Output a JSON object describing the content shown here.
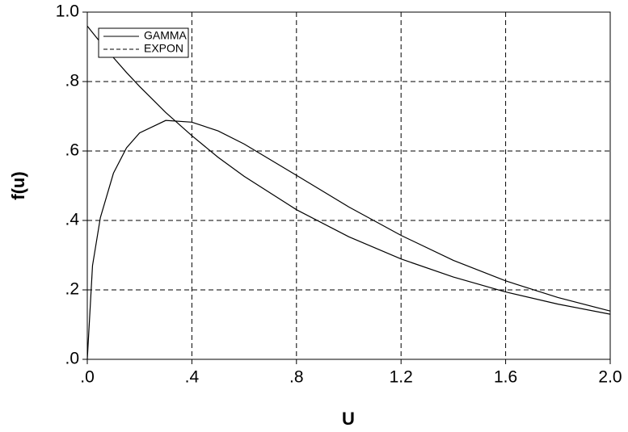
{
  "chart_data": {
    "type": "line",
    "x_label": "U",
    "y_label": "f(u)",
    "x": [
      0,
      0.02,
      0.05,
      0.1,
      0.15,
      0.2,
      0.3,
      0.4,
      0.5,
      0.6,
      0.8,
      1.0,
      1.2,
      1.4,
      1.6,
      1.8,
      2.0
    ],
    "series": [
      {
        "name": "GAMMA",
        "color": "#000000",
        "line_style": "solid",
        "values": [
          0,
          0.27,
          0.408,
          0.536,
          0.609,
          0.652,
          0.688,
          0.683,
          0.658,
          0.62,
          0.53,
          0.439,
          0.357,
          0.285,
          0.226,
          0.178,
          0.139
        ]
      },
      {
        "name": "EXPON",
        "color": "#000000",
        "line_style": "dashed",
        "values": [
          0.96,
          0.941,
          0.913,
          0.869,
          0.826,
          0.786,
          0.711,
          0.644,
          0.582,
          0.527,
          0.431,
          0.353,
          0.289,
          0.237,
          0.194,
          0.159,
          0.13
        ]
      }
    ],
    "xlim": [
      0,
      2
    ],
    "ylim": [
      0,
      1
    ],
    "xticks": [
      {
        "value": 0,
        "label": ".0"
      },
      {
        "value": 0.4,
        "label": ".4"
      },
      {
        "value": 0.8,
        "label": ".8"
      },
      1.2,
      1.6,
      {
        "value": 2,
        "label": "2.0"
      }
    ],
    "yticks": [
      {
        "value": 0,
        "label": ".0"
      },
      {
        "value": 0.2,
        "label": ".2"
      },
      {
        "value": 0.4,
        "label": ".4"
      },
      {
        "value": 0.6,
        "label": ".6"
      },
      {
        "value": 0.8,
        "label": ".8"
      },
      {
        "value": 1,
        "label": "1.0"
      }
    ],
    "grid": true,
    "legend": "upper left"
  }
}
